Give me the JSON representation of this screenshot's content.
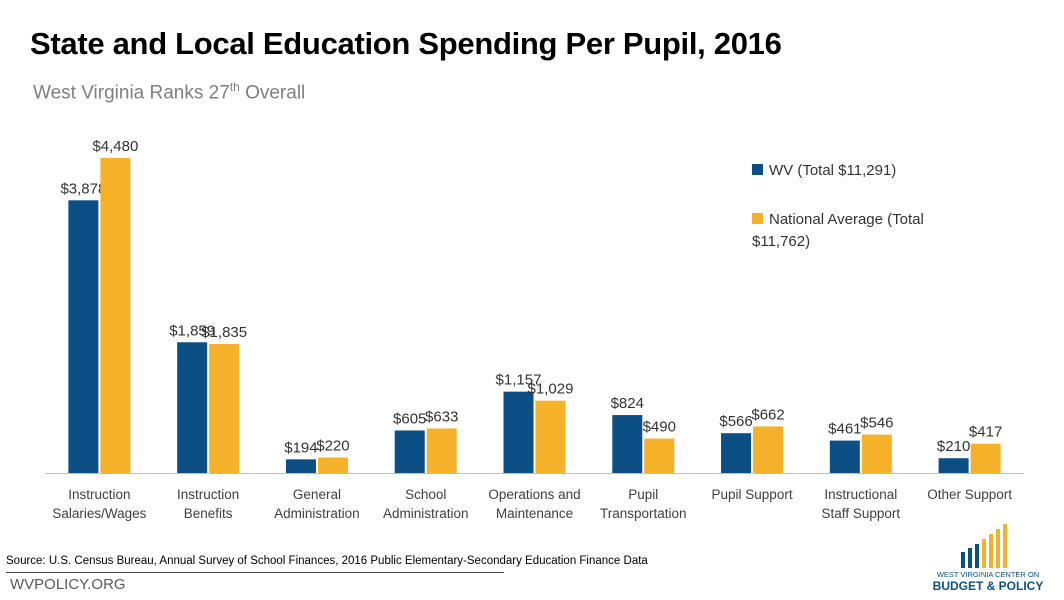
{
  "header": {
    "title": "State and Local Education Spending Per Pupil, 2016",
    "subtitle_main": "West Virginia Ranks 27",
    "subtitle_sup": "th",
    "subtitle_end": " Overall"
  },
  "colors": {
    "wv": "#0b4f85",
    "national": "#f6b12b",
    "axis": "#bfbfbf"
  },
  "chart_data": {
    "type": "bar",
    "categories": [
      [
        "Instruction",
        "Salaries/Wages"
      ],
      [
        "Instruction",
        "Benefits"
      ],
      [
        "General",
        "Administration"
      ],
      [
        "School",
        "Administration"
      ],
      [
        "Operations and",
        "Maintenance"
      ],
      [
        "Pupil",
        "Transportation"
      ],
      [
        "Pupil Support"
      ],
      [
        "Instructional",
        "Staff Support"
      ],
      [
        "Other Support"
      ]
    ],
    "series": [
      {
        "name": "WV (Total $11,291)",
        "values": [
          3878,
          1859,
          194,
          605,
          1157,
          824,
          566,
          461,
          210
        ],
        "labels": [
          "$3,878",
          "$1,859",
          "$194",
          "$605",
          "$1,157",
          "$824",
          "$566",
          "$461",
          "$210"
        ]
      },
      {
        "name": "National Average (Total $11,762)",
        "values": [
          4480,
          1835,
          220,
          633,
          1029,
          490,
          662,
          546,
          417
        ],
        "labels": [
          "$4,480",
          "$1,835",
          "$220",
          "$633",
          "$1,029",
          "$490",
          "$662",
          "$546",
          "$417"
        ]
      }
    ],
    "ylim": [
      0,
      4480
    ],
    "legend_position": "top-right",
    "grid": false
  },
  "legend": {
    "wv": "WV (Total $11,291)",
    "national": "National Average (Total $11,762)"
  },
  "footer": {
    "source": "Source: U.S. Census Bureau, Annual Survey of School Finances, 2016 Public Elementary-Secondary Education Finance Data",
    "site": "WVPOLICY.ORG",
    "logo_line1": "WEST VIRGINIA CENTER ON",
    "logo_line2": "BUDGET & POLICY"
  }
}
